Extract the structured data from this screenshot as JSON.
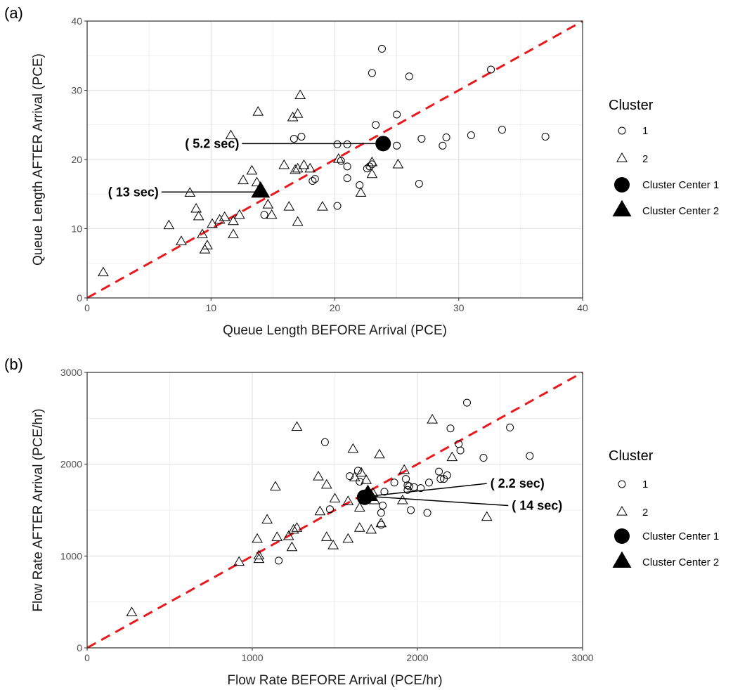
{
  "chart_data": [
    {
      "type": "scatter",
      "panel_label": "(a)",
      "xlabel": "Queue Length BEFORE Arrival (PCE)",
      "ylabel": "Queue Length AFTER Arrival (PCE)",
      "xlim": [
        0,
        40
      ],
      "ylim": [
        0,
        40
      ],
      "xticks": [
        0,
        10,
        20,
        30,
        40
      ],
      "yticks": [
        0,
        10,
        20,
        30,
        40
      ],
      "grid": true,
      "reference_line": {
        "x": [
          0,
          40
        ],
        "y": [
          0,
          40
        ],
        "color": "#e8181d",
        "style": "dashed"
      },
      "legend": {
        "title": "Cluster",
        "placement": "right",
        "entries": [
          {
            "label": "1",
            "marker": "circle-open"
          },
          {
            "label": "2",
            "marker": "triangle-open"
          },
          {
            "label": "Cluster Center 1",
            "marker": "circle-filled"
          },
          {
            "label": "Cluster Center 2",
            "marker": "triangle-filled"
          }
        ]
      },
      "series": [
        {
          "name": "1",
          "marker": "circle-open",
          "points": [
            [
              23.8,
              36.0
            ],
            [
              23.0,
              32.5
            ],
            [
              26.0,
              32.0
            ],
            [
              32.6,
              33.0
            ],
            [
              25.0,
              26.5
            ],
            [
              23.3,
              25.0
            ],
            [
              16.7,
              23.0
            ],
            [
              17.3,
              23.3
            ],
            [
              20.2,
              22.2
            ],
            [
              21.0,
              22.2
            ],
            [
              25.0,
              22.0
            ],
            [
              27.0,
              23.0
            ],
            [
              29.0,
              23.2
            ],
            [
              28.7,
              22.0
            ],
            [
              31.0,
              23.5
            ],
            [
              33.5,
              24.3
            ],
            [
              37.0,
              23.3
            ],
            [
              20.5,
              19.8
            ],
            [
              21.0,
              19.0
            ],
            [
              23.0,
              19.3
            ],
            [
              22.8,
              19.0
            ],
            [
              22.6,
              18.7
            ],
            [
              21.0,
              17.3
            ],
            [
              18.2,
              16.9
            ],
            [
              18.4,
              17.2
            ],
            [
              22.0,
              16.3
            ],
            [
              26.8,
              16.5
            ],
            [
              20.2,
              13.3
            ],
            [
              14.3,
              12.0
            ]
          ]
        },
        {
          "name": "2",
          "marker": "triangle-open",
          "points": [
            [
              13.8,
              26.8
            ],
            [
              17.2,
              29.2
            ],
            [
              16.6,
              26.0
            ],
            [
              17.0,
              26.5
            ],
            [
              11.6,
              23.4
            ],
            [
              15.9,
              19.1
            ],
            [
              16.8,
              18.4
            ],
            [
              17.0,
              18.6
            ],
            [
              17.5,
              19.1
            ],
            [
              18.0,
              18.6
            ],
            [
              20.3,
              20.0
            ],
            [
              23.0,
              19.5
            ],
            [
              25.1,
              19.2
            ],
            [
              23.0,
              17.8
            ],
            [
              13.3,
              18.3
            ],
            [
              12.6,
              16.9
            ],
            [
              13.7,
              16.6
            ],
            [
              22.1,
              15.1
            ],
            [
              8.3,
              15.1
            ],
            [
              14.6,
              13.4
            ],
            [
              16.3,
              13.1
            ],
            [
              19.0,
              13.1
            ],
            [
              8.8,
              12.8
            ],
            [
              9.0,
              11.7
            ],
            [
              10.7,
              11.2
            ],
            [
              11.1,
              11.6
            ],
            [
              11.8,
              11.0
            ],
            [
              12.3,
              11.9
            ],
            [
              14.9,
              11.9
            ],
            [
              17.0,
              10.9
            ],
            [
              6.6,
              10.4
            ],
            [
              10.1,
              10.6
            ],
            [
              11.8,
              9.1
            ],
            [
              9.3,
              9.1
            ],
            [
              7.6,
              8.1
            ],
            [
              9.7,
              7.5
            ],
            [
              9.5,
              6.9
            ],
            [
              1.3,
              3.6
            ]
          ]
        }
      ],
      "centers": [
        {
          "name": "Cluster Center 1",
          "marker": "circle-filled",
          "x": 23.9,
          "y": 22.3
        },
        {
          "name": "Cluster Center 2",
          "marker": "triangle-filled",
          "x": 14.0,
          "y": 15.3
        }
      ],
      "annotations": [
        {
          "text": "( 5.2 sec)",
          "from": [
            12.5,
            22.3
          ],
          "to": [
            23.9,
            22.3
          ],
          "anchor": "end"
        },
        {
          "text": "( 13 sec)",
          "from": [
            6.0,
            15.3
          ],
          "to": [
            14.0,
            15.3
          ],
          "anchor": "end"
        }
      ]
    },
    {
      "type": "scatter",
      "panel_label": "(b)",
      "xlabel": "Flow Rate BEFORE Arrival (PCE/hr)",
      "ylabel": "Flow Rate AFTER Arrival (PCE/hr)",
      "xlim": [
        0,
        3000
      ],
      "ylim": [
        0,
        3000
      ],
      "xticks": [
        0,
        1000,
        2000,
        3000
      ],
      "yticks": [
        0,
        1000,
        2000,
        3000
      ],
      "grid": true,
      "reference_line": {
        "x": [
          0,
          3000
        ],
        "y": [
          0,
          3000
        ],
        "color": "#e8181d",
        "style": "dashed"
      },
      "legend": {
        "title": "Cluster",
        "placement": "right",
        "entries": [
          {
            "label": "1",
            "marker": "circle-open"
          },
          {
            "label": "2",
            "marker": "triangle-open"
          },
          {
            "label": "Cluster Center 1",
            "marker": "circle-filled"
          },
          {
            "label": "Cluster Center 2",
            "marker": "triangle-filled"
          }
        ]
      },
      "series": [
        {
          "name": "1",
          "marker": "circle-open",
          "points": [
            [
              2300,
              2670
            ],
            [
              2560,
              2400
            ],
            [
              2200,
              2390
            ],
            [
              2250,
              2220
            ],
            [
              2260,
              2150
            ],
            [
              2680,
              2090
            ],
            [
              2400,
              2070
            ],
            [
              1440,
              2240
            ],
            [
              1640,
              1930
            ],
            [
              1590,
              1870
            ],
            [
              1650,
              1810
            ],
            [
              1860,
              1800
            ],
            [
              1940,
              1720
            ],
            [
              1950,
              1760
            ],
            [
              1980,
              1750
            ],
            [
              2020,
              1740
            ],
            [
              2070,
              1800
            ],
            [
              2130,
              1920
            ],
            [
              2140,
              1840
            ],
            [
              2160,
              1840
            ],
            [
              2180,
              1880
            ],
            [
              1930,
              1840
            ],
            [
              1940,
              1770
            ],
            [
              1780,
              1470
            ],
            [
              1790,
              1550
            ],
            [
              1800,
              1700
            ],
            [
              1960,
              1500
            ],
            [
              2060,
              1470
            ],
            [
              1780,
              1340
            ],
            [
              1470,
              1510
            ],
            [
              1160,
              950
            ]
          ]
        },
        {
          "name": "2",
          "marker": "triangle-open",
          "points": [
            [
              1270,
              2400
            ],
            [
              2090,
              2480
            ],
            [
              1610,
              2160
            ],
            [
              1770,
              2100
            ],
            [
              2210,
              2070
            ],
            [
              1620,
              1850
            ],
            [
              1660,
              1900
            ],
            [
              1400,
              1860
            ],
            [
              1450,
              1770
            ],
            [
              1140,
              1750
            ],
            [
              1690,
              1820
            ],
            [
              1730,
              1680
            ],
            [
              1920,
              1930
            ],
            [
              1500,
              1620
            ],
            [
              1580,
              1590
            ],
            [
              1650,
              1520
            ],
            [
              1740,
              1600
            ],
            [
              1720,
              1660
            ],
            [
              1910,
              1600
            ],
            [
              2420,
              1420
            ],
            [
              1410,
              1480
            ],
            [
              1090,
              1390
            ],
            [
              1650,
              1300
            ],
            [
              1720,
              1280
            ],
            [
              1780,
              1350
            ],
            [
              1580,
              1180
            ],
            [
              1450,
              1200
            ],
            [
              1490,
              1110
            ],
            [
              1150,
              1200
            ],
            [
              1220,
              1210
            ],
            [
              1270,
              1300
            ],
            [
              1250,
              1280
            ],
            [
              1240,
              1090
            ],
            [
              1030,
              1180
            ],
            [
              1040,
              1000
            ],
            [
              1040,
              960
            ],
            [
              920,
              930
            ],
            [
              270,
              380
            ]
          ]
        }
      ],
      "centers": [
        {
          "name": "Cluster Center 1",
          "marker": "circle-filled",
          "x": 1680,
          "y": 1640
        },
        {
          "name": "Cluster Center 2",
          "marker": "triangle-filled",
          "x": 1700,
          "y": 1660
        }
      ],
      "annotations": [
        {
          "text": "( 2.2 sec)",
          "from": [
            1700,
            1650
          ],
          "to": [
            2420,
            1790
          ],
          "anchor": "start"
        },
        {
          "text": "( 14 sec)",
          "from": [
            1700,
            1650
          ],
          "to": [
            2550,
            1550
          ],
          "anchor": "start"
        }
      ]
    }
  ]
}
